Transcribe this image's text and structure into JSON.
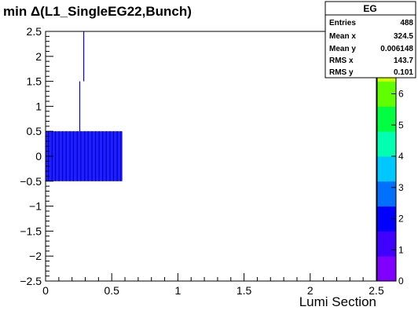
{
  "chart_data": {
    "type": "heatmap",
    "title": "min Δ(L1_SingleEG22,Bunch)",
    "xlabel": "Lumi Section",
    "ylabel": "",
    "xlim": [
      0,
      2.5
    ],
    "ylim": [
      -2.5,
      2.5
    ],
    "zlim": [
      0,
      8
    ],
    "x_ticks": [
      "0",
      "0.5",
      "1",
      "1.5",
      "2",
      "2.5"
    ],
    "y_ticks": [
      "−2.5",
      "−2",
      "−1.5",
      "−1",
      "−0.5",
      "0",
      "0.5",
      "1",
      "1.5",
      "2",
      "2.5"
    ],
    "z_ticks": [
      "0",
      "1",
      "2",
      "3",
      "4",
      "5",
      "6",
      "7"
    ],
    "grid": false,
    "colormap": "rainbow",
    "cells": [
      {
        "x0": 0.0,
        "x1": 0.58,
        "y0": -0.5,
        "y1": 0.5,
        "z": 2,
        "color": "#1f1fff"
      },
      {
        "x0": 0.255,
        "x1": 0.262,
        "y0": 0.5,
        "y1": 1.5,
        "z": 1,
        "color": "#0a00e8"
      },
      {
        "x0": 0.285,
        "x1": 0.292,
        "y0": 1.5,
        "y1": 2.5,
        "z": 1,
        "color": "#0a00e8"
      }
    ],
    "stripes": [
      0.018,
      0.046,
      0.071,
      0.098,
      0.125,
      0.152,
      0.181,
      0.207,
      0.236,
      0.263,
      0.292,
      0.318,
      0.347,
      0.374,
      0.401,
      0.428,
      0.455,
      0.483,
      0.51,
      0.538,
      0.565
    ],
    "stats": {
      "name": "EG",
      "rows": [
        {
          "label": "Entries",
          "value": "488"
        },
        {
          "label": "Mean x",
          "value": "324.5"
        },
        {
          "label": "Mean y",
          "value": "0.006148"
        },
        {
          "label": "RMS x",
          "value": "143.7"
        },
        {
          "label": "RMS y",
          "value": "0.101"
        }
      ]
    },
    "palette": [
      "#8000ff",
      "#4000ff",
      "#0000ff",
      "#0070ff",
      "#00c8ff",
      "#00ffb0",
      "#00ff40",
      "#60ff00",
      "#c8ff00",
      "#ffff00"
    ]
  }
}
